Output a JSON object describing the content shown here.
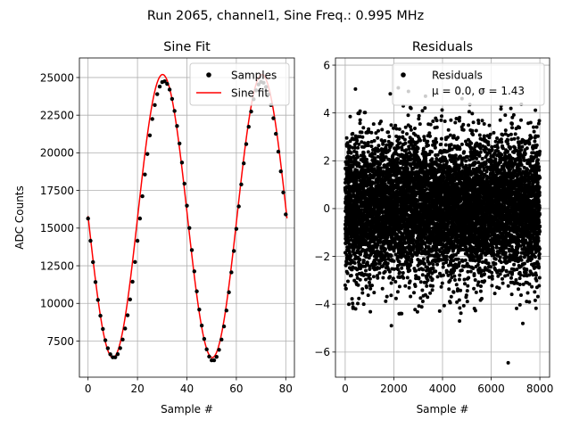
{
  "figure": {
    "suptitle": "Run 2065, channel1, Sine Freq.: 0.995 MHz"
  },
  "colors": {
    "samples": "#000000",
    "fit": "#ff0000",
    "residuals": "#000000",
    "grid": "#b0b0b0",
    "legend_border": "#cccccc"
  },
  "chart_data": [
    {
      "type": "line",
      "title": "Sine Fit",
      "xlabel": "Sample #",
      "ylabel": "ADC Counts",
      "xlim": [
        -3.5,
        83.5
      ],
      "ylim": [
        5100,
        26300
      ],
      "xticks": [
        0,
        20,
        40,
        60,
        80
      ],
      "yticks": [
        7500,
        10000,
        12500,
        15000,
        17500,
        20000,
        22500,
        25000
      ],
      "grid": true,
      "legend": "top-right",
      "fit_model": {
        "amplitude": 9400,
        "offset": 15800,
        "period": 40.2,
        "crest_sample": 30.15,
        "x_range": [
          0,
          80.5
        ]
      },
      "series": [
        {
          "name": "Samples",
          "style": "markers",
          "x": [
            0,
            1,
            2,
            3,
            4,
            5,
            6,
            7,
            8,
            9,
            10,
            11,
            12,
            13,
            14,
            15,
            16,
            17,
            18,
            19,
            20,
            21,
            22,
            23,
            24,
            25,
            26,
            27,
            28,
            29,
            30,
            31,
            32,
            33,
            34,
            35,
            36,
            37,
            38,
            39,
            40,
            41,
            42,
            43,
            44,
            45,
            46,
            47,
            48,
            49,
            50,
            51,
            52,
            53,
            54,
            55,
            56,
            57,
            58,
            59,
            60,
            61,
            62,
            63,
            64,
            65,
            66,
            67,
            68,
            69,
            70,
            71,
            72,
            73,
            74,
            75,
            76,
            77,
            78,
            79,
            80
          ],
          "y": [
            15640,
            14160,
            12740,
            11420,
            10230,
            9180,
            8300,
            7550,
            7020,
            6620,
            6420,
            6420,
            6630,
            7030,
            7600,
            8330,
            9210,
            10260,
            11440,
            12750,
            14160,
            15640,
            17120,
            18560,
            19920,
            21160,
            22250,
            23170,
            23900,
            24400,
            24700,
            24750,
            24580,
            24200,
            23580,
            22780,
            21780,
            20620,
            19350,
            17950,
            16490,
            15010,
            13540,
            12130,
            10800,
            9590,
            8530,
            7640,
            6950,
            6470,
            6220,
            6220,
            6450,
            6920,
            7600,
            8470,
            9530,
            10740,
            12060,
            13480,
            14950,
            16440,
            17900,
            19300,
            20580,
            21730,
            22740,
            23560,
            24150,
            24540,
            24710,
            24650,
            24380,
            23880,
            23170,
            22300,
            21260,
            20080,
            18770,
            17370,
            15910
          ],
          "color": "#000000"
        },
        {
          "name": "Sine fit",
          "style": "line",
          "color": "#ff0000"
        }
      ]
    },
    {
      "type": "scatter",
      "title": "Residuals",
      "xlabel": "Sample #",
      "ylabel": "",
      "xlim": [
        -400,
        8400
      ],
      "ylim": [
        -7.05,
        6.3
      ],
      "xticks": [
        0,
        2000,
        4000,
        6000,
        8000
      ],
      "yticks": [
        -6,
        -4,
        -2,
        0,
        2,
        4,
        6
      ],
      "grid": true,
      "legend": "top-right",
      "n_points": 8000,
      "distribution": {
        "mean": 0.0,
        "sigma": 1.43
      },
      "series": [
        {
          "name": "Residuals",
          "annotation": "μ = 0.0, σ = 1.43",
          "color": "#000000"
        }
      ],
      "outliers": [
        {
          "x": 420,
          "y": 5.0
        },
        {
          "x": 1850,
          "y": 4.8
        },
        {
          "x": 2600,
          "y": 4.9
        },
        {
          "x": 3300,
          "y": 4.7
        },
        {
          "x": 4800,
          "y": 4.6
        },
        {
          "x": 5600,
          "y": 4.9
        },
        {
          "x": 2180,
          "y": 5.05
        },
        {
          "x": 6700,
          "y": -6.45
        },
        {
          "x": 1900,
          "y": -4.9
        },
        {
          "x": 7300,
          "y": -4.8
        },
        {
          "x": 4700,
          "y": -4.7
        },
        {
          "x": 150,
          "y": -4.0
        }
      ]
    }
  ]
}
